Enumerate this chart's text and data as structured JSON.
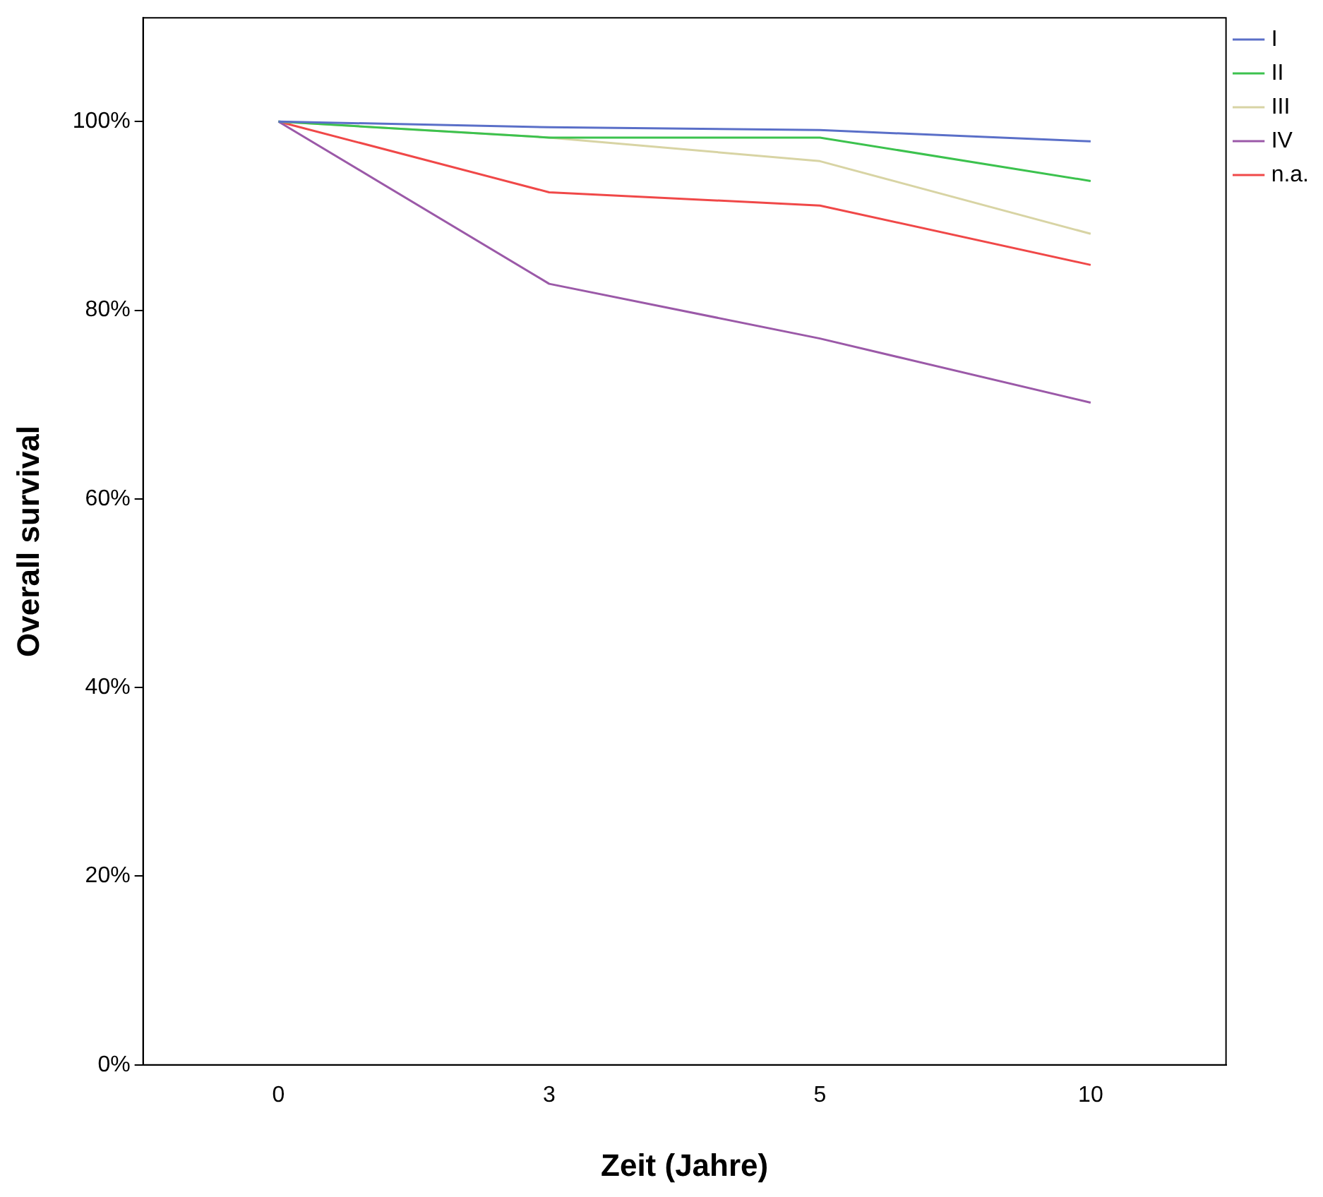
{
  "chart_data": {
    "type": "line",
    "xlabel": "Zeit (Jahre)",
    "ylabel": "Overall survival",
    "categories": [
      "0",
      "3",
      "5",
      "10"
    ],
    "series": [
      {
        "name": "I",
        "color": "#5a6fc8",
        "values": [
          100,
          99.4,
          99.1,
          97.9
        ]
      },
      {
        "name": "II",
        "color": "#3cc24e",
        "values": [
          100,
          98.3,
          98.3,
          93.7
        ]
      },
      {
        "name": "III",
        "color": "#d8d4a4",
        "values": [
          100,
          98.3,
          95.8,
          88.1
        ]
      },
      {
        "name": "IV",
        "color": "#9b59a8",
        "values": [
          100,
          82.8,
          77.0,
          70.2
        ]
      },
      {
        "name": "n.a.",
        "color": "#f04848",
        "values": [
          100,
          92.5,
          91.1,
          84.8
        ]
      }
    ],
    "ylim": [
      0,
      111
    ],
    "yticks": [
      {
        "value": 0,
        "label": "0%"
      },
      {
        "value": 20,
        "label": "20%"
      },
      {
        "value": 40,
        "label": "40%"
      },
      {
        "value": 60,
        "label": "60%"
      },
      {
        "value": 80,
        "label": "80%"
      },
      {
        "value": 100,
        "label": "100%"
      }
    ],
    "grid": false,
    "legend": "top right",
    "marker": "none",
    "line_style": "solid"
  }
}
